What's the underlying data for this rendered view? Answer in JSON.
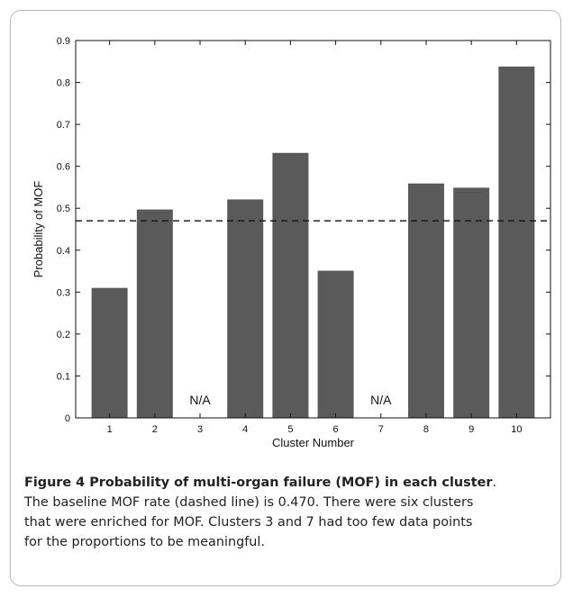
{
  "chart_data": {
    "type": "bar",
    "categories": [
      "1",
      "2",
      "3",
      "4",
      "5",
      "6",
      "7",
      "8",
      "9",
      "10"
    ],
    "values": [
      0.31,
      0.497,
      null,
      0.521,
      0.632,
      0.351,
      null,
      0.559,
      0.549,
      0.838
    ],
    "missing_label": "N/A",
    "baseline": 0.47,
    "xlabel": "Cluster Number",
    "ylabel": "Probability of MOF",
    "ylim": [
      0,
      0.9
    ],
    "yticks": [
      0,
      0.1,
      0.2,
      0.3,
      0.4,
      0.5,
      0.6,
      0.7,
      0.8,
      0.9
    ],
    "ytick_labels": [
      "0",
      "0.1",
      "0.2",
      "0.3",
      "0.4",
      "0.5",
      "0.6",
      "0.7",
      "0.8",
      "0.9"
    ],
    "bar_color": "#5a5a5a",
    "grid": false
  },
  "caption": {
    "title": "Figure 4 Probability of multi-organ failure (MOF) in each cluster",
    "title_end": ".",
    "line1": "The baseline MOF rate (dashed line) is 0.470. There were six clusters",
    "line2": "that were enriched for MOF. Clusters 3 and 7 had too few data points",
    "line3": "for the proportions to be meaningful."
  }
}
